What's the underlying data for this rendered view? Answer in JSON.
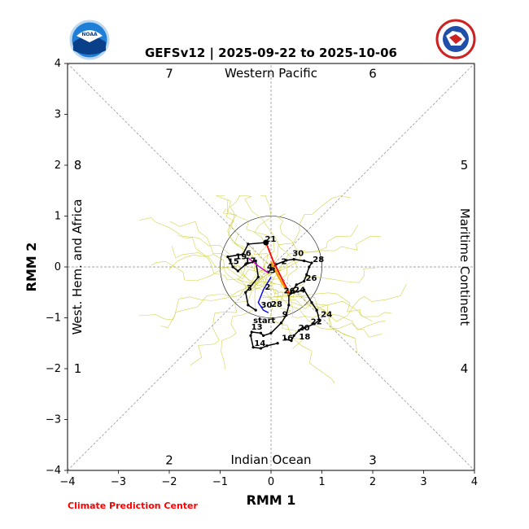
{
  "chart_data": {
    "type": "line",
    "title": "GEFSv12 | 2025-09-22 to 2025-10-06",
    "xlabel": "RMM 1",
    "ylabel": "RMM 2",
    "xlim": [
      -4,
      4
    ],
    "ylim": [
      -4,
      4
    ],
    "ticks": [
      "−4",
      "−3",
      "−2",
      "−1",
      "0",
      "1",
      "2",
      "3",
      "4"
    ],
    "tick_values": [
      -4,
      -3,
      -2,
      -1,
      0,
      1,
      2,
      3,
      4
    ],
    "grid": "dashed zero lines and diagonals",
    "unit_circle_radius": 1,
    "regions": {
      "top": "Western Pacific",
      "bottom": "Indian Ocean",
      "left": "West. Hem. and Africa",
      "right": "Maritime Continent"
    },
    "phases": [
      {
        "label": "1",
        "x": -3.8,
        "y": -2
      },
      {
        "label": "2",
        "x": -2,
        "y": -3.8
      },
      {
        "label": "3",
        "x": 2,
        "y": -3.8
      },
      {
        "label": "4",
        "x": 3.8,
        "y": -2
      },
      {
        "label": "5",
        "x": 3.8,
        "y": 2
      },
      {
        "label": "6",
        "x": 2,
        "y": 3.8
      },
      {
        "label": "7",
        "x": -2,
        "y": 3.8
      },
      {
        "label": "8",
        "x": -3.8,
        "y": 2
      }
    ],
    "observed": {
      "color": "#000000",
      "points": [
        [
          0.13,
          -1.5
        ],
        [
          -0.08,
          -1.55
        ],
        [
          -0.2,
          -1.6
        ],
        [
          -0.35,
          -1.58
        ],
        [
          -0.4,
          -1.35
        ],
        [
          -0.38,
          -1.28
        ],
        [
          -0.2,
          -1.3
        ],
        [
          -0.15,
          -1.35
        ],
        [
          0.0,
          -1.3
        ],
        [
          0.2,
          -1.1
        ],
        [
          0.3,
          -0.95
        ],
        [
          0.35,
          -0.75
        ],
        [
          0.35,
          -0.55
        ],
        [
          0.45,
          -0.5
        ],
        [
          0.65,
          -0.45
        ],
        [
          0.8,
          -0.7
        ],
        [
          0.9,
          -0.85
        ],
        [
          0.95,
          -1.05
        ],
        [
          0.85,
          -1.12
        ],
        [
          0.65,
          -1.2
        ],
        [
          0.55,
          -1.25
        ],
        [
          0.45,
          -1.35
        ],
        [
          0.4,
          -1.45
        ],
        [
          0.28,
          -1.42
        ]
      ],
      "labels": [
        {
          "text": "14",
          "x": -0.33,
          "y": -1.55
        },
        {
          "text": "13",
          "x": -0.39,
          "y": -1.23
        },
        {
          "text": "9",
          "x": 0.22,
          "y": -0.98
        },
        {
          "text": "24",
          "x": 0.98,
          "y": -0.98
        },
        {
          "text": "22",
          "x": 0.78,
          "y": -1.13
        },
        {
          "text": "20",
          "x": 0.54,
          "y": -1.25
        },
        {
          "text": "18",
          "x": 0.55,
          "y": -1.42
        },
        {
          "text": "16",
          "x": 0.21,
          "y": -1.45
        }
      ]
    },
    "ensemble_mean": {
      "color": "#000000",
      "points": [
        [
          0.38,
          -0.52
        ],
        [
          0.5,
          -0.35
        ],
        [
          0.65,
          -0.28
        ],
        [
          0.7,
          -0.15
        ],
        [
          0.75,
          0.0
        ],
        [
          0.8,
          0.08
        ],
        [
          0.65,
          0.12
        ],
        [
          0.45,
          0.15
        ],
        [
          0.3,
          0.13
        ],
        [
          0.1,
          0.05
        ],
        [
          0.0,
          -0.05
        ],
        [
          -0.05,
          -0.1
        ]
      ],
      "labels": [
        {
          "text": "24",
          "x": 0.45,
          "y": -0.5
        },
        {
          "text": "26",
          "x": 0.68,
          "y": -0.27
        },
        {
          "text": "28",
          "x": 0.82,
          "y": 0.1
        },
        {
          "text": "30",
          "x": 0.42,
          "y": 0.22
        },
        {
          "text": "2",
          "x": 0.2,
          "y": 0.06
        },
        {
          "text": "4",
          "x": -0.08,
          "y": -0.05
        }
      ]
    },
    "past_track": {
      "color": "#000000",
      "points": [
        [
          -0.1,
          0.48
        ],
        [
          -0.45,
          0.45
        ],
        [
          -0.55,
          0.25
        ],
        [
          -0.85,
          0.2
        ],
        [
          -0.75,
          0.0
        ],
        [
          -0.65,
          -0.08
        ],
        [
          -0.5,
          0.05
        ],
        [
          -0.3,
          0.12
        ],
        [
          -0.25,
          -0.2
        ],
        [
          -0.5,
          -0.5
        ],
        [
          -0.45,
          -0.75
        ],
        [
          -0.3,
          -0.85
        ]
      ],
      "labels": [
        {
          "text": "21",
          "x": -0.12,
          "y": 0.5
        },
        {
          "text": "19",
          "x": -0.7,
          "y": 0.15
        },
        {
          "text": "17",
          "x": -0.52,
          "y": 0.07
        },
        {
          "text": "15",
          "x": -0.85,
          "y": 0.06
        },
        {
          "text": "3",
          "x": -0.48,
          "y": -0.46
        },
        {
          "text": "6",
          "x": -0.5,
          "y": 0.22
        }
      ]
    },
    "forecast_red": {
      "color": "#ff0000",
      "points": [
        [
          -0.1,
          0.48
        ],
        [
          0.05,
          0.1
        ],
        [
          0.2,
          -0.2
        ],
        [
          0.35,
          -0.5
        ]
      ]
    },
    "forecast_blue": {
      "color": "#0000ff",
      "points": [
        [
          0.0,
          -0.2
        ],
        [
          -0.15,
          -0.45
        ],
        [
          -0.25,
          -0.7
        ],
        [
          -0.15,
          -0.85
        ],
        [
          -0.05,
          -0.9
        ]
      ],
      "labels": [
        {
          "text": "2",
          "x": -0.12,
          "y": -0.45
        },
        {
          "text": "30",
          "x": -0.2,
          "y": -0.8
        },
        {
          "text": "28",
          "x": 0.0,
          "y": -0.78
        },
        {
          "text": "start",
          "x": -0.35,
          "y": -1.1
        }
      ]
    },
    "forecast_magenta": {
      "color": "#cc00cc",
      "points": [
        [
          -0.45,
          0.18
        ],
        [
          -0.25,
          0.02
        ],
        [
          -0.05,
          -0.12
        ]
      ]
    },
    "mean_labels_orange": [
      {
        "text": "26",
        "x": 0.25,
        "y": -0.52
      },
      {
        "text": "3",
        "x": -0.02,
        "y": -0.12
      }
    ],
    "start_marker": {
      "x": -0.1,
      "y": 0.48
    },
    "ensemble_color": "#cccc33",
    "ensemble_member_count": 30
  },
  "credit": "Climate Prediction Center",
  "logos": {
    "left": {
      "name": "noaa-logo",
      "text": "NOAA",
      "color": "#1a75cf"
    },
    "right": {
      "name": "nws-logo",
      "text": "NATIONAL WEATHER SERVICE",
      "color": "#cc2222"
    }
  }
}
